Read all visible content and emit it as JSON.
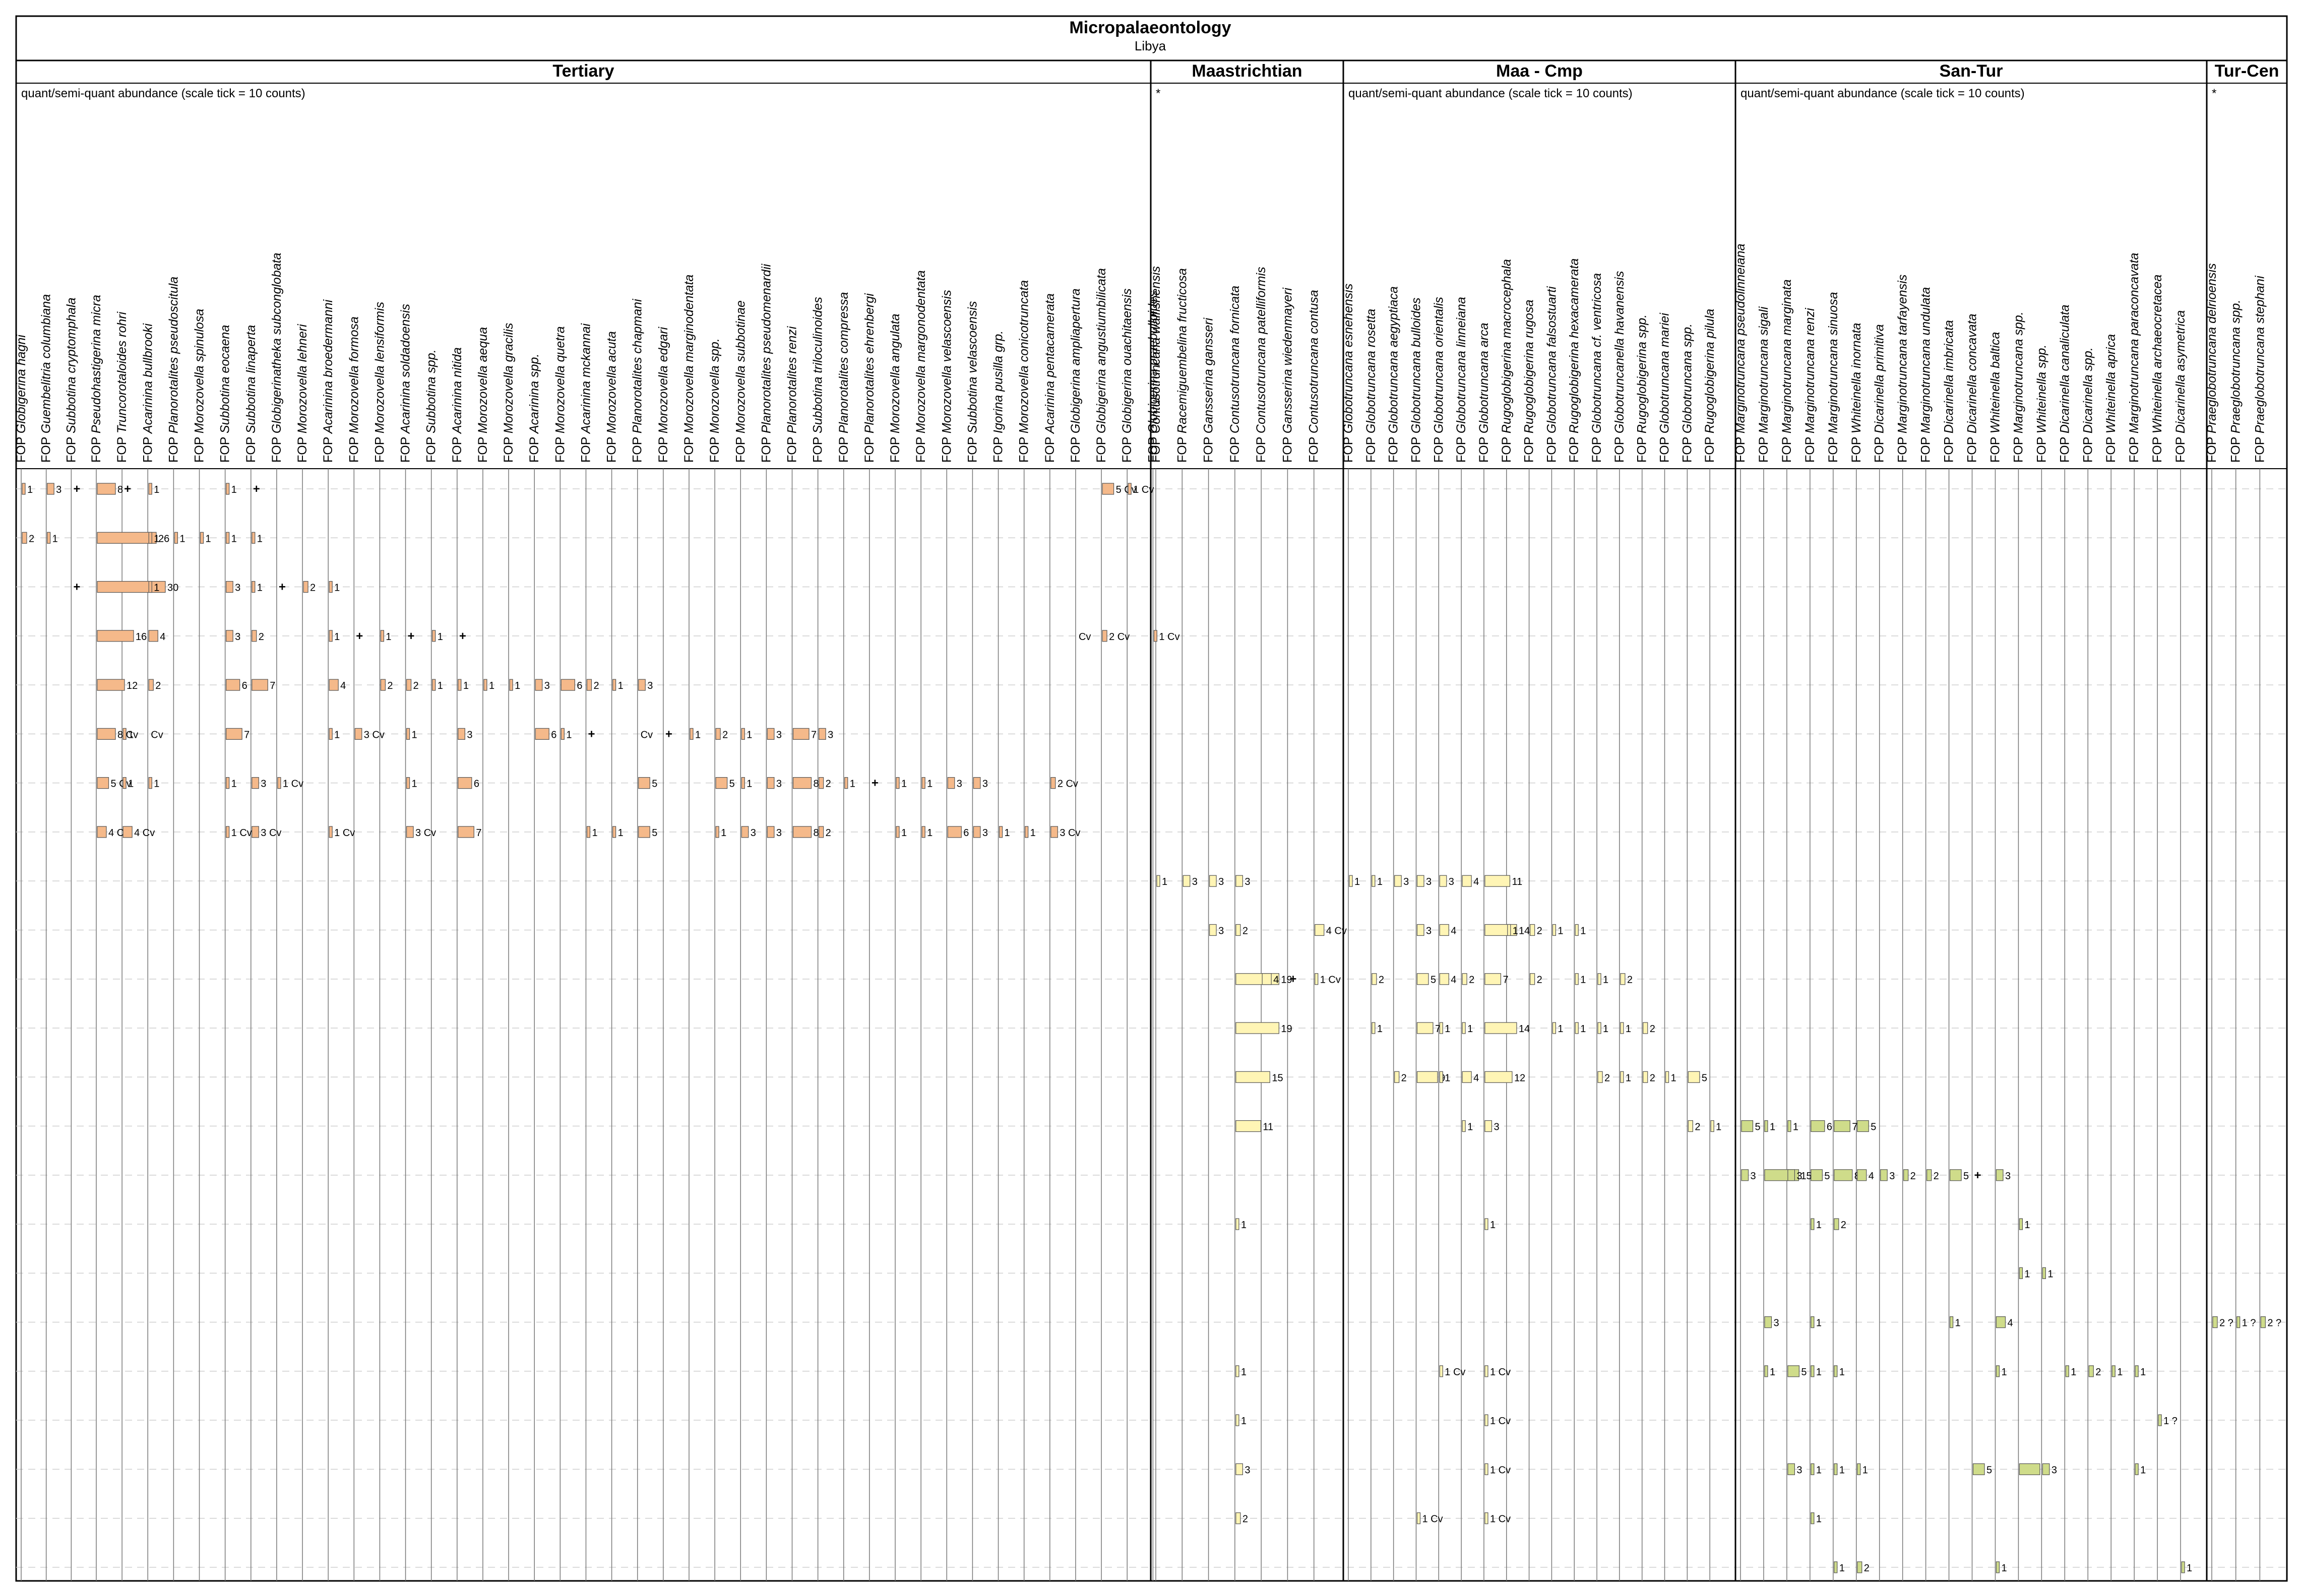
{
  "page": {
    "title": "Micropalaeontology",
    "subtitle": "Libya"
  },
  "colors": {
    "tertiary_bar": "#f5b98a",
    "maastrichtian_bar": "#fff5b5",
    "san_tur_bar": "#cfdc8a",
    "grid_line": "#cfcfcf",
    "frame": "#000000"
  },
  "chart_data": {
    "type": "table",
    "prefix": "FOP",
    "scale_note": "quant/semi-quant abundance (scale tick = 10 counts)",
    "star_note": "*",
    "groups": [
      {
        "label": "Tertiary",
        "note": "quant/semi-quant abundance (scale tick = 10 counts)",
        "start": 0,
        "end": 52
      },
      {
        "label": "Maastrichtian",
        "note": "*",
        "start": 53,
        "end": 59
      },
      {
        "label": "Maa - Cmp",
        "note": "quant/semi-quant abundance (scale tick = 10 counts)",
        "start": 60,
        "end": 77
      },
      {
        "label": "San-Tur",
        "note": "quant/semi-quant abundance (scale tick = 10 counts)",
        "start": 78,
        "end": 99
      },
      {
        "label": "Tur-Cen",
        "note": "*",
        "start": 100,
        "end": 102
      }
    ],
    "columns": [
      "Globigerina hagni",
      "Guembelitria columbiana",
      "Subbotina cryptomphala",
      "Pseudohastigerina micra",
      "Truncorotaloides rohri",
      "Acarinina bullbrooki",
      "Planorotalites pseudoscitula",
      "Morozovella spinulosa",
      "Subbotina eocaena",
      "Subbotina linaperta",
      "Globigerinatheka subconglobata",
      "Morozovella lehneri",
      "Acarinina broedermanni",
      "Morozovella formosa",
      "Morozovella lensiformis",
      "Acarinina soldadoensis",
      "Subbotina spp.",
      "Acarinina nitida",
      "Morozovella aequa",
      "Morozovella gracilis",
      "Acarinina spp.",
      "Morozovella quetra",
      "Acarinina mckannai",
      "Morozovella acuta",
      "Planorotalites chapmani",
      "Morozovella edgari",
      "Morozovella marginodentata",
      "Morozovella spp.",
      "Morozovella subbotinae",
      "Planorotalites pseudomenardii",
      "Planorotalites renzi",
      "Subbotina triloculinoides",
      "Planorotalites compressa",
      "Planorotalites ehrenbergi",
      "Morozovella angulata",
      "Morozovella margonodentata",
      "Morozovella velascoensis",
      "Subbotina velascoensis",
      "Igorina pusilla grp.",
      "Morozovella conicotruncata",
      "Acarinina pentacamerata",
      "Globigerina ampliapertura",
      "Globigerina angustiumbilicata",
      "Globigerina ouachitaensis",
      "Globigerina praebulloides",
      "Contusotruncana walfishensis",
      "Racemiguembelina fructicosa",
      "Gansserina gansseri",
      "Contusotruncana fornicata",
      "Contusotruncana patelliformis",
      "Gansserina wiedenmayeri",
      "Contusotruncana contusa",
      "Globotruncana esnehensis",
      "Globotruncana rosetta",
      "Globotruncana aegyptiaca",
      "Globotruncana bulloides",
      "Globotruncana orientalis",
      "Globotruncana linneiana",
      "Globotruncana arca",
      "Rugoglobigerina macrocephala",
      "Rugoglobigerina rugosa",
      "Globotruncana falsostuarti",
      "Rugoglobigerina hexacamerata",
      "Globotruncana cf. ventricosa",
      "Globotruncanella havanensis",
      "Rugoglobigerina spp.",
      "Globotruncana mariei",
      "Globotruncana spp.",
      "Rugoglobigerina pilula",
      "Marginotruncana pseudolinneiana",
      "Marginotruncana sigali",
      "Marginotruncana marginata",
      "Marginotruncana renzi",
      "Marginotruncana sinuosa",
      "Whiteinella inornata",
      "Dicarinella primitiva",
      "Marginotruncana tarfayensis",
      "Marginotruncana undulata",
      "Dicarinella imbricata",
      "Dicarinella concavata",
      "Whiteinella baltica",
      "Marginotruncana spp.",
      "Whiteinella spp.",
      "Dicarinella canaliculata",
      "Dicarinella spp.",
      "Whiteinella aprica",
      "Marginotruncana paraconcavata",
      "Whiteinella archaeocretacea",
      "Dicarinella asymetrica",
      "Praeglobotruncana delrioensis",
      "Praeglobotruncana spp.",
      "Praeglobotruncana stephani"
    ],
    "groups_by_column": [
      {
        "label": "Tertiary",
        "first": 0,
        "last": 44
      },
      {
        "label": "Maastrichtian",
        "first": 45,
        "last": 51
      },
      {
        "label": "Maa - Cmp",
        "first": 52,
        "last": 68
      },
      {
        "label": "San-Tur",
        "first": 69,
        "last": 88
      },
      {
        "label": "Tur-Cen",
        "first": 89,
        "last": 91
      }
    ],
    "samples": [
      {
        "id": 1,
        "counts": [
          [
            0,
            "1"
          ],
          [
            1,
            "3"
          ],
          [
            2,
            "+"
          ],
          [
            3,
            "8"
          ],
          [
            4,
            "+"
          ],
          [
            5,
            "1"
          ],
          [
            8,
            "1"
          ],
          [
            9,
            "+"
          ],
          [
            42,
            "5 Cv"
          ],
          [
            43,
            "1 Cv"
          ]
        ]
      },
      {
        "id": 2,
        "counts": [
          [
            0,
            "2"
          ],
          [
            1,
            "1"
          ],
          [
            3,
            "26"
          ],
          [
            5,
            "1"
          ],
          [
            6,
            "1"
          ],
          [
            7,
            "1"
          ],
          [
            8,
            "1"
          ],
          [
            9,
            "1"
          ]
        ]
      },
      {
        "id": 3,
        "counts": [
          [
            2,
            "+"
          ],
          [
            3,
            "30"
          ],
          [
            5,
            "1"
          ],
          [
            8,
            "3"
          ],
          [
            9,
            "1"
          ],
          [
            10,
            "+"
          ],
          [
            11,
            "2"
          ],
          [
            12,
            "1"
          ]
        ]
      },
      {
        "id": 4,
        "counts": [
          [
            3,
            "16"
          ],
          [
            5,
            "4"
          ],
          [
            8,
            "3"
          ],
          [
            9,
            "2"
          ],
          [
            12,
            "1"
          ],
          [
            13,
            "+"
          ],
          [
            14,
            "1"
          ],
          [
            15,
            "+"
          ],
          [
            16,
            "1"
          ],
          [
            17,
            "+"
          ],
          [
            41,
            "Cv"
          ],
          [
            42,
            "2 Cv"
          ],
          [
            44,
            "1 Cv"
          ]
        ]
      },
      {
        "id": 5,
        "counts": [
          [
            3,
            "12"
          ],
          [
            5,
            "2"
          ],
          [
            8,
            "6"
          ],
          [
            9,
            "7"
          ],
          [
            12,
            "4"
          ],
          [
            14,
            "2"
          ],
          [
            15,
            "2"
          ],
          [
            16,
            "1"
          ],
          [
            17,
            "1"
          ],
          [
            18,
            "1"
          ],
          [
            19,
            "1"
          ],
          [
            20,
            "3"
          ],
          [
            21,
            "6"
          ],
          [
            22,
            "2"
          ],
          [
            23,
            "1"
          ],
          [
            24,
            "3"
          ]
        ]
      },
      {
        "id": 6,
        "counts": [
          [
            3,
            "8 Cv"
          ],
          [
            4,
            "1"
          ],
          [
            5,
            "Cv"
          ],
          [
            8,
            "7"
          ],
          [
            12,
            "1"
          ],
          [
            13,
            "3 Cv"
          ],
          [
            15,
            "1"
          ],
          [
            17,
            "3"
          ],
          [
            20,
            "6"
          ],
          [
            21,
            "1"
          ],
          [
            22,
            "+"
          ],
          [
            24,
            "Cv"
          ],
          [
            25,
            "+"
          ],
          [
            26,
            "1"
          ],
          [
            27,
            "2"
          ],
          [
            28,
            "1"
          ],
          [
            29,
            "3"
          ],
          [
            30,
            "7"
          ],
          [
            31,
            "3"
          ]
        ]
      },
      {
        "id": 7,
        "counts": [
          [
            3,
            "5 Cv"
          ],
          [
            4,
            "1"
          ],
          [
            5,
            "1"
          ],
          [
            8,
            "1"
          ],
          [
            9,
            "3"
          ],
          [
            10,
            "1 Cv"
          ],
          [
            15,
            "1"
          ],
          [
            17,
            "6"
          ],
          [
            24,
            "5"
          ],
          [
            27,
            "5"
          ],
          [
            28,
            "1"
          ],
          [
            29,
            "3"
          ],
          [
            30,
            "8"
          ],
          [
            31,
            "2"
          ],
          [
            32,
            "1"
          ],
          [
            33,
            "+"
          ],
          [
            34,
            "1"
          ],
          [
            35,
            "1"
          ],
          [
            36,
            "3"
          ],
          [
            37,
            "3"
          ],
          [
            40,
            "2 Cv"
          ]
        ]
      },
      {
        "id": 8,
        "counts": [
          [
            3,
            "4 Cv"
          ],
          [
            4,
            "4 Cv"
          ],
          [
            8,
            "1 Cv"
          ],
          [
            9,
            "3 Cv"
          ],
          [
            12,
            "1 Cv"
          ],
          [
            15,
            "3 Cv"
          ],
          [
            17,
            "7"
          ],
          [
            22,
            "1"
          ],
          [
            23,
            "1"
          ],
          [
            24,
            "5"
          ],
          [
            27,
            "1"
          ],
          [
            28,
            "3"
          ],
          [
            29,
            "3"
          ],
          [
            30,
            "8"
          ],
          [
            31,
            "2"
          ],
          [
            34,
            "1"
          ],
          [
            35,
            "1"
          ],
          [
            36,
            "6"
          ],
          [
            37,
            "3"
          ],
          [
            38,
            "1"
          ],
          [
            39,
            "1"
          ],
          [
            40,
            "3 Cv"
          ]
        ]
      },
      {
        "id": 9,
        "counts": [
          [
            45,
            "1"
          ],
          [
            46,
            "3"
          ],
          [
            47,
            "3"
          ],
          [
            48,
            "3"
          ],
          [
            52,
            "1"
          ],
          [
            53,
            "1"
          ],
          [
            54,
            "3"
          ],
          [
            55,
            "3"
          ],
          [
            56,
            "3"
          ],
          [
            57,
            "4"
          ],
          [
            58,
            "11"
          ]
        ]
      },
      {
        "id": 10,
        "counts": [
          [
            47,
            "3"
          ],
          [
            48,
            "2"
          ],
          [
            51,
            "4 Cv"
          ],
          [
            55,
            "3"
          ],
          [
            56,
            "4"
          ],
          [
            58,
            "14"
          ],
          [
            59,
            "1"
          ],
          [
            60,
            "2"
          ],
          [
            61,
            "1"
          ],
          [
            62,
            "1"
          ]
        ]
      },
      {
        "id": 11,
        "counts": [
          [
            48,
            "19"
          ],
          [
            49,
            "4"
          ],
          [
            50,
            "+"
          ],
          [
            51,
            "1 Cv"
          ],
          [
            53,
            "2"
          ],
          [
            55,
            "5"
          ],
          [
            56,
            "4"
          ],
          [
            57,
            "2"
          ],
          [
            58,
            "7"
          ],
          [
            60,
            "2"
          ],
          [
            62,
            "1"
          ],
          [
            63,
            "1"
          ],
          [
            64,
            "2"
          ]
        ]
      },
      {
        "id": 12,
        "counts": [
          [
            48,
            "19"
          ],
          [
            53,
            "1"
          ],
          [
            55,
            "7"
          ],
          [
            56,
            "1"
          ],
          [
            57,
            "1"
          ],
          [
            58,
            "14"
          ],
          [
            61,
            "1"
          ],
          [
            62,
            "1"
          ],
          [
            63,
            "1"
          ],
          [
            64,
            "1"
          ],
          [
            65,
            "2"
          ]
        ]
      },
      {
        "id": 13,
        "counts": [
          [
            48,
            "15"
          ],
          [
            54,
            "2"
          ],
          [
            55,
            "9"
          ],
          [
            56,
            "1"
          ],
          [
            57,
            "4"
          ],
          [
            58,
            "12"
          ],
          [
            63,
            "2"
          ],
          [
            64,
            "1"
          ],
          [
            65,
            "2"
          ],
          [
            66,
            "1"
          ],
          [
            67,
            "5"
          ]
        ]
      },
      {
        "id": 14,
        "counts": [
          [
            48,
            "11"
          ],
          [
            57,
            "1"
          ],
          [
            58,
            "3"
          ],
          [
            67,
            "2"
          ],
          [
            68,
            "1"
          ],
          [
            69,
            "5"
          ],
          [
            70,
            "1"
          ],
          [
            71,
            "1"
          ],
          [
            72,
            "6"
          ],
          [
            73,
            "7"
          ],
          [
            74,
            "5"
          ]
        ]
      },
      {
        "id": 15,
        "counts": [
          [
            69,
            "3"
          ],
          [
            70,
            "15"
          ],
          [
            71,
            "3"
          ],
          [
            72,
            "5"
          ],
          [
            73,
            "8"
          ],
          [
            74,
            "4"
          ],
          [
            75,
            "3"
          ],
          [
            76,
            "2"
          ],
          [
            77,
            "2"
          ],
          [
            78,
            "5"
          ],
          [
            79,
            "+"
          ],
          [
            80,
            "3"
          ]
        ]
      },
      {
        "id": 16,
        "counts": [
          [
            48,
            "1"
          ],
          [
            58,
            "1"
          ],
          [
            72,
            "1"
          ],
          [
            73,
            "2"
          ],
          [
            81,
            "1"
          ]
        ]
      },
      {
        "id": 17,
        "counts": [
          [
            81,
            "1"
          ],
          [
            82,
            "1"
          ]
        ]
      },
      {
        "id": 18,
        "counts": [
          [
            70,
            "3"
          ],
          [
            72,
            "1"
          ],
          [
            78,
            "1"
          ],
          [
            80,
            "4"
          ],
          [
            89,
            "2 ?"
          ],
          [
            90,
            "1 ?"
          ],
          [
            91,
            "2 ?"
          ]
        ]
      },
      {
        "id": 19,
        "counts": [
          [
            48,
            "1"
          ],
          [
            56,
            "1 Cv"
          ],
          [
            58,
            "1 Cv"
          ],
          [
            70,
            "1"
          ],
          [
            71,
            "5"
          ],
          [
            72,
            "1"
          ],
          [
            73,
            "1"
          ],
          [
            80,
            "1"
          ],
          [
            83,
            "1"
          ],
          [
            84,
            "2"
          ],
          [
            85,
            "1"
          ],
          [
            86,
            "1"
          ]
        ]
      },
      {
        "id": 20,
        "counts": [
          [
            48,
            "1"
          ],
          [
            58,
            "1 Cv"
          ],
          [
            87,
            "1 ?"
          ]
        ]
      },
      {
        "id": 21,
        "counts": [
          [
            48,
            "3"
          ],
          [
            58,
            "1 Cv"
          ],
          [
            71,
            "3"
          ],
          [
            72,
            "1"
          ],
          [
            73,
            "1"
          ],
          [
            74,
            "1"
          ],
          [
            79,
            "5"
          ],
          [
            81,
            "9"
          ],
          [
            82,
            "3"
          ],
          [
            86,
            "1"
          ]
        ]
      },
      {
        "id": 22,
        "counts": [
          [
            48,
            "2"
          ],
          [
            55,
            "1 Cv"
          ],
          [
            58,
            "1 Cv"
          ],
          [
            72,
            "1"
          ]
        ]
      },
      {
        "id": 23,
        "counts": [
          [
            73,
            "1"
          ],
          [
            74,
            "2"
          ],
          [
            80,
            "1"
          ],
          [
            88,
            "1"
          ]
        ]
      }
    ]
  }
}
